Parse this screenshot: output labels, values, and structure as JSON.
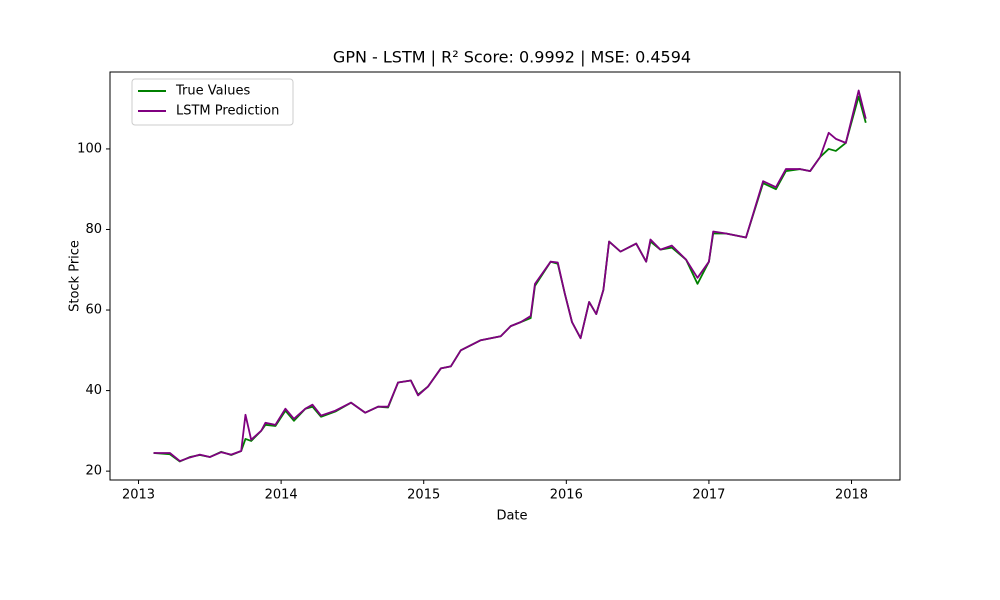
{
  "chart_data": {
    "type": "line",
    "title": "GPN - LSTM | R² Score: 0.9992 | MSE: 0.4594",
    "xlabel": "Date",
    "ylabel": "Stock Price",
    "x": [
      2013.105,
      2013.22,
      2013.29,
      2013.36,
      2013.43,
      2013.5,
      2013.58,
      2013.65,
      2013.72,
      2013.75,
      2013.79,
      2013.86,
      2013.89,
      2013.96,
      2014.03,
      2014.09,
      2014.17,
      2014.22,
      2014.28,
      2014.38,
      2014.49,
      2014.59,
      2014.68,
      2014.75,
      2014.82,
      2014.91,
      2014.96,
      2015.03,
      2015.12,
      2015.19,
      2015.26,
      2015.4,
      2015.54,
      2015.61,
      2015.68,
      2015.75,
      2015.78,
      2015.89,
      2015.94,
      2015.99,
      2016.04,
      2016.1,
      2016.16,
      2016.21,
      2016.26,
      2016.3,
      2016.38,
      2016.49,
      2016.56,
      2016.59,
      2016.66,
      2016.74,
      2016.84,
      2016.92,
      2017.0,
      2017.03,
      2017.12,
      2017.26,
      2017.38,
      2017.47,
      2017.54,
      2017.64,
      2017.71,
      2017.78,
      2017.84,
      2017.89,
      2017.96,
      2018.05,
      2018.1
    ],
    "series": [
      {
        "name": "True Values",
        "color": "#008000",
        "values": [
          24.5,
          24.2,
          22.4,
          23.5,
          24.0,
          23.5,
          24.8,
          24.0,
          25.0,
          28,
          27.5,
          30,
          31.5,
          31.2,
          35,
          32.5,
          35.5,
          36,
          33.5,
          34.8,
          37,
          34.5,
          36,
          35.8,
          42,
          42.5,
          39,
          41,
          45.5,
          46,
          50,
          52.5,
          53.5,
          56,
          57,
          58,
          66,
          72,
          71.5,
          64,
          57,
          53,
          62,
          59,
          65,
          77,
          74.5,
          76.5,
          72,
          77,
          75,
          75.5,
          72.5,
          66.5,
          72,
          79,
          79,
          78,
          91.5,
          90,
          94.5,
          95,
          94.5,
          98,
          100,
          99.5,
          101.5,
          113,
          106.5
        ]
      },
      {
        "name": "LSTM Prediction",
        "color": "#800080",
        "values": [
          24.5,
          24.5,
          22.5,
          23.4,
          24.1,
          23.5,
          24.7,
          24.1,
          25.0,
          34,
          27.8,
          30,
          32,
          31.5,
          35.5,
          33,
          35.5,
          36.5,
          33.8,
          35,
          37,
          34.5,
          36,
          36,
          42,
          42.5,
          38.8,
          41,
          45.5,
          46,
          50,
          52.5,
          53.5,
          56,
          57,
          58.5,
          66.5,
          72,
          71.8,
          64,
          57,
          53,
          62,
          59,
          65,
          77,
          74.5,
          76.5,
          72,
          77.5,
          75,
          76,
          72.5,
          68,
          72,
          79.5,
          79,
          78,
          92,
          90.5,
          95,
          95,
          94.5,
          98,
          104,
          102.5,
          101.5,
          114.5,
          107.5
        ]
      }
    ],
    "xlim": [
      2012.8,
      2018.34
    ],
    "xticks": [
      2013,
      2014,
      2015,
      2016,
      2017,
      2018
    ],
    "ylim": [
      17.8,
      119.1
    ],
    "yticks": [
      20,
      40,
      60,
      80,
      100
    ],
    "legend": "upper left",
    "grid": false
  }
}
